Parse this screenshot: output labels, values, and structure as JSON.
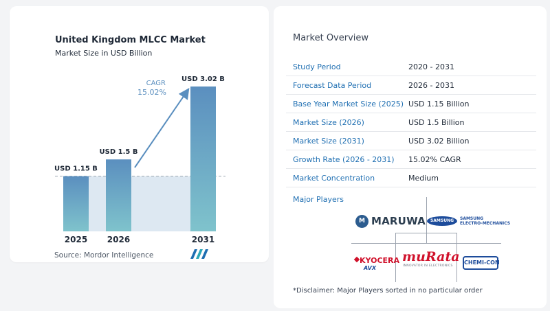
{
  "chart_data": {
    "type": "bar",
    "title": "United Kingdom MLCC Market",
    "subtitle": "Market Size in USD Billion",
    "categories": [
      "2025",
      "2026",
      "2031"
    ],
    "values": [
      1.15,
      1.5,
      3.02
    ],
    "data_labels": [
      "USD 1.15 B",
      "USD 1.5 B",
      "USD 3.02 B"
    ],
    "cagr_label": "CAGR",
    "cagr_value": "15.02%",
    "ylim": [
      0,
      3.02
    ],
    "source": "Source:  Mordor Intelligence",
    "colors": {
      "bar_top": "#5b8fbf",
      "bar_bottom": "#7fc3cc",
      "shade": "#dde8f2",
      "arrow": "#5b8fbf",
      "cagr": "#5b8fbf"
    }
  },
  "overview": {
    "title": "Market Overview",
    "rows": [
      {
        "label": "Study Period",
        "value": "2020 - 2031"
      },
      {
        "label": "Forecast Data Period",
        "value": "2026 - 2031"
      },
      {
        "label": "Base Year Market Size (2025)",
        "value": "USD 1.15 Billion"
      },
      {
        "label": "Market Size (2026)",
        "value": "USD 1.5 Billion"
      },
      {
        "label": "Market Size (2031)",
        "value": "USD 3.02 Billion"
      },
      {
        "label": "Growth Rate (2026 - 2031)",
        "value": "15.02% CAGR"
      },
      {
        "label": "Market Concentration",
        "value": "Medium"
      }
    ]
  },
  "players": {
    "title": "Major Players",
    "maruwa": {
      "mark": "M",
      "name": "MARUWA"
    },
    "samsung": {
      "badge": "SAMSUNG",
      "line1": "SAMSUNG",
      "line2": "ELECTRO-MECHANICS"
    },
    "murata": {
      "name": "muRata",
      "tagline": "INNOVATOR IN ELECTRONICS"
    },
    "kyocera": {
      "name": "KYOCERA",
      "sub": "AVX"
    },
    "chemicon": {
      "name": "CHEMI-CON"
    }
  },
  "disclaimer": "*Disclaimer: Major Players sorted in no particular order"
}
